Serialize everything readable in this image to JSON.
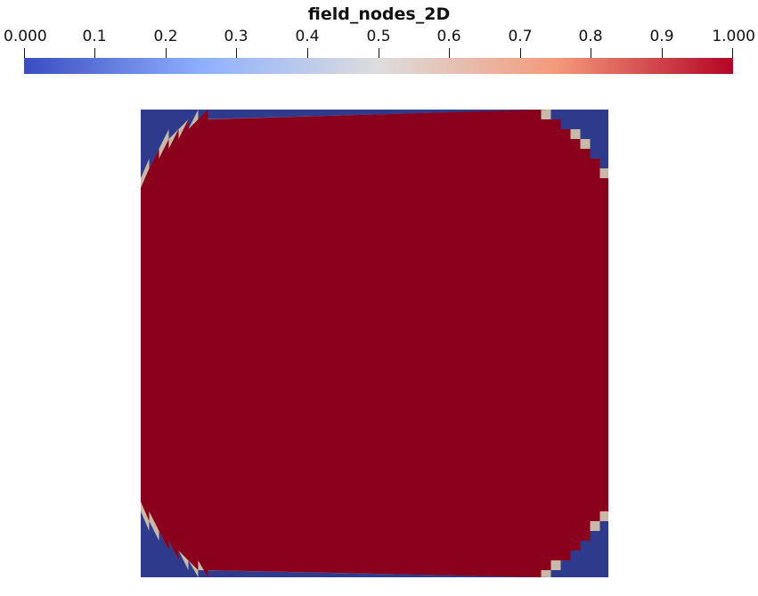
{
  "colorbar": {
    "title": "field_nodes_2D",
    "tick_labels": [
      "0.000",
      "0.1",
      "0.2",
      "0.3",
      "0.4",
      "0.5",
      "0.6",
      "0.7",
      "0.8",
      "0.9",
      "1.000"
    ],
    "tick_values": [
      0.0,
      0.1,
      0.2,
      0.3,
      0.4,
      0.5,
      0.6,
      0.7,
      0.8,
      0.9,
      1.0
    ],
    "range": [
      0.0,
      1.0
    ],
    "colormap": [
      "#3b4cc0",
      "#8db0fe",
      "#dddddd",
      "#f49a7b",
      "#b40426"
    ]
  },
  "field": {
    "inside_value": 1.0,
    "outside_value": 0.0,
    "inside_color": "#8a001c",
    "outside_color": "#2e3b8c",
    "interface_color": "#c8b8a8"
  }
}
